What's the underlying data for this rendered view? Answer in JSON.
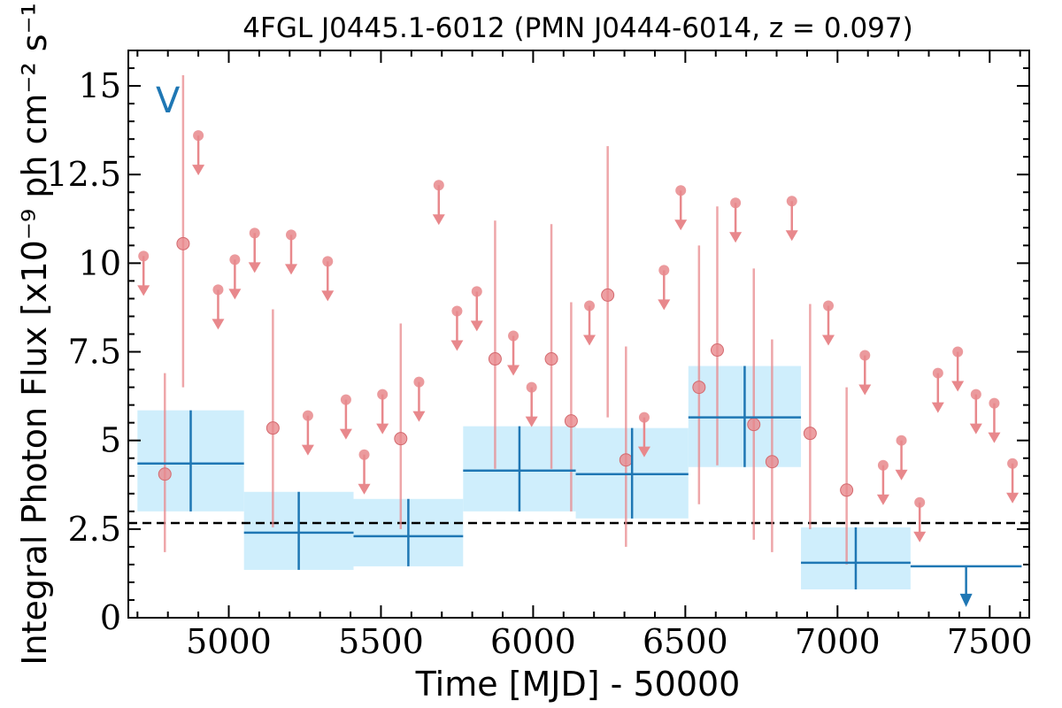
{
  "chart_data": {
    "type": "scatter",
    "title": "4FGL J0445.1-6012 (PMN J0444-6014, z = 0.097)",
    "xlabel": "Time [MJD] - 50000",
    "ylabel": "Integral Photon Flux [x10⁻⁹ ph cm⁻² s⁻¹]",
    "xlim": [
      4670,
      7630
    ],
    "ylim": [
      0,
      16
    ],
    "xticks": [
      5000,
      5500,
      6000,
      6500,
      7000,
      7500
    ],
    "xtick_labels": [
      "5000",
      "5500",
      "6000",
      "6500",
      "7000",
      "7500"
    ],
    "yticks": [
      0,
      2.5,
      5,
      7.5,
      10,
      12.5,
      15
    ],
    "ytick_labels": [
      "0",
      "2.5",
      "5",
      "7.5",
      "10",
      "12.5",
      "15"
    ],
    "grid": false,
    "reference_line": {
      "y": 2.67,
      "style": "dashed"
    },
    "annotation": {
      "text": "V",
      "x": 4800,
      "y": 14.6
    },
    "colors": {
      "short_bins": "#e8888c",
      "long_bins": "#1f77b4",
      "long_bin_band": "#cfeefc",
      "reference_line": "#000000"
    },
    "series": [
      {
        "style": "red-circles",
        "detections": [
          {
            "x": 4790,
            "y": 4.05,
            "lo": 1.85,
            "hi": 6.9
          },
          {
            "x": 4850,
            "y": 10.55,
            "lo": 6.5,
            "hi": 15.3
          },
          {
            "x": 5145,
            "y": 5.35,
            "lo": 2.55,
            "hi": 8.7
          },
          {
            "x": 5565,
            "y": 5.05,
            "lo": 2.5,
            "hi": 8.3
          },
          {
            "x": 5875,
            "y": 7.3,
            "lo": 4.2,
            "hi": 11.2
          },
          {
            "x": 6060,
            "y": 7.3,
            "lo": 4.2,
            "hi": 11.1
          },
          {
            "x": 6125,
            "y": 5.55,
            "lo": 3.0,
            "hi": 8.9
          },
          {
            "x": 6245,
            "y": 9.1,
            "lo": 5.65,
            "hi": 13.3
          },
          {
            "x": 6305,
            "y": 4.45,
            "lo": 2.0,
            "hi": 7.65
          },
          {
            "x": 6545,
            "y": 6.5,
            "lo": 3.2,
            "hi": 10.5
          },
          {
            "x": 6605,
            "y": 7.55,
            "lo": 4.3,
            "hi": 11.6
          },
          {
            "x": 6725,
            "y": 5.45,
            "lo": 2.2,
            "hi": 9.85
          },
          {
            "x": 6785,
            "y": 4.4,
            "lo": 1.85,
            "hi": 7.85
          },
          {
            "x": 6910,
            "y": 5.2,
            "lo": 2.5,
            "hi": 8.85
          },
          {
            "x": 7030,
            "y": 3.6,
            "lo": 1.5,
            "hi": 6.5
          }
        ],
        "upper_limits": [
          {
            "x": 4720,
            "y": 10.2
          },
          {
            "x": 4900,
            "y": 13.6
          },
          {
            "x": 4965,
            "y": 9.25
          },
          {
            "x": 5020,
            "y": 10.1
          },
          {
            "x": 5085,
            "y": 10.85
          },
          {
            "x": 5205,
            "y": 10.8
          },
          {
            "x": 5260,
            "y": 5.7
          },
          {
            "x": 5325,
            "y": 10.05
          },
          {
            "x": 5385,
            "y": 6.15
          },
          {
            "x": 5445,
            "y": 4.6
          },
          {
            "x": 5505,
            "y": 6.3
          },
          {
            "x": 5625,
            "y": 6.65
          },
          {
            "x": 5690,
            "y": 12.2
          },
          {
            "x": 5750,
            "y": 8.65
          },
          {
            "x": 5815,
            "y": 9.2
          },
          {
            "x": 5935,
            "y": 7.95
          },
          {
            "x": 5995,
            "y": 6.5
          },
          {
            "x": 6185,
            "y": 8.8
          },
          {
            "x": 6365,
            "y": 5.65
          },
          {
            "x": 6430,
            "y": 9.8
          },
          {
            "x": 6485,
            "y": 12.05
          },
          {
            "x": 6665,
            "y": 11.7
          },
          {
            "x": 6850,
            "y": 11.75
          },
          {
            "x": 6970,
            "y": 8.8
          },
          {
            "x": 7090,
            "y": 7.4
          },
          {
            "x": 7150,
            "y": 4.3
          },
          {
            "x": 7210,
            "y": 5.0
          },
          {
            "x": 7270,
            "y": 3.25
          },
          {
            "x": 7330,
            "y": 6.9
          },
          {
            "x": 7395,
            "y": 7.5
          },
          {
            "x": 7455,
            "y": 6.3
          },
          {
            "x": 7515,
            "y": 6.05
          },
          {
            "x": 7575,
            "y": 4.35
          }
        ]
      },
      {
        "style": "blue-crosses",
        "bins": [
          {
            "x0": 4700,
            "x1": 5050,
            "y": 4.35,
            "lo": 3.0,
            "hi": 5.85
          },
          {
            "x0": 5050,
            "x1": 5410,
            "y": 2.4,
            "lo": 1.35,
            "hi": 3.55
          },
          {
            "x0": 5410,
            "x1": 5770,
            "y": 2.3,
            "lo": 1.45,
            "hi": 3.35
          },
          {
            "x0": 5770,
            "x1": 6140,
            "y": 4.15,
            "lo": 3.0,
            "hi": 5.4
          },
          {
            "x0": 6140,
            "x1": 6510,
            "y": 4.05,
            "lo": 2.8,
            "hi": 5.35
          },
          {
            "x0": 6510,
            "x1": 6880,
            "y": 5.65,
            "lo": 4.25,
            "hi": 7.1
          },
          {
            "x0": 6880,
            "x1": 7240,
            "y": 1.55,
            "lo": 0.8,
            "hi": 2.55
          }
        ],
        "upper_limit_bins": [
          {
            "x0": 7240,
            "x1": 7605,
            "y": 1.45
          }
        ]
      }
    ]
  }
}
